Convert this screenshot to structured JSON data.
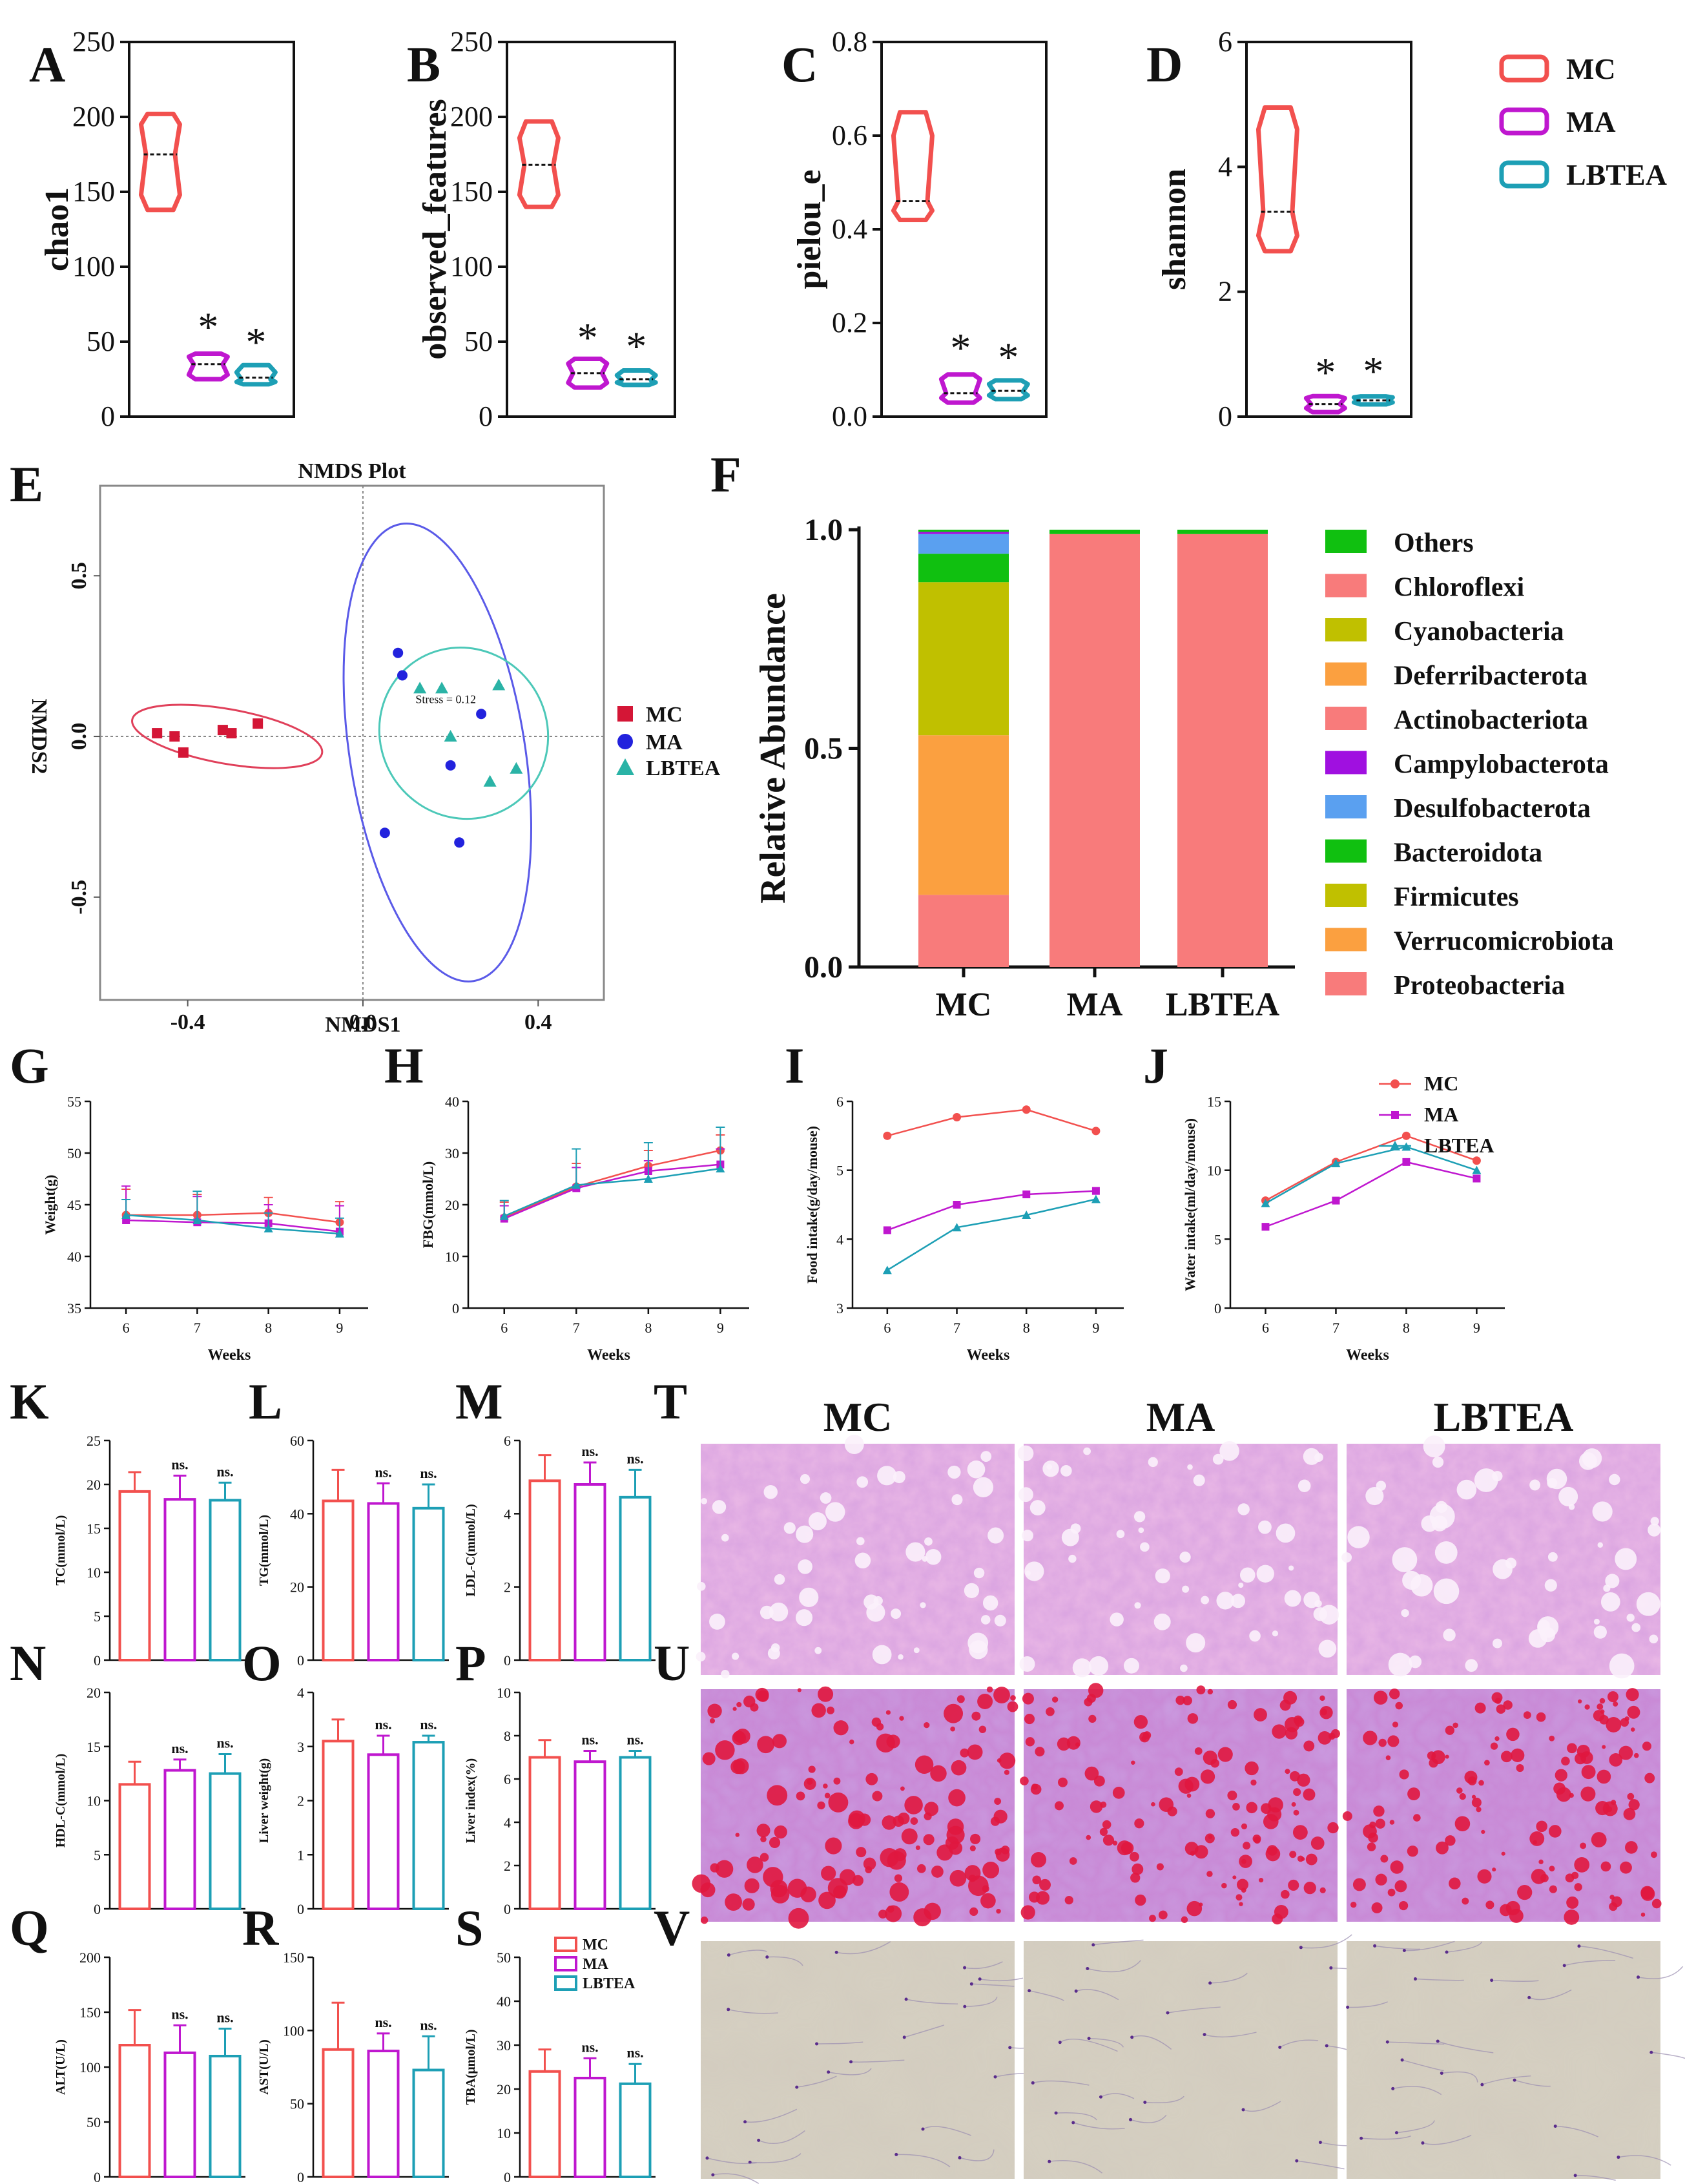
{
  "colors": {
    "MC": "#f2504e",
    "MA": "#bf17cf",
    "LBTEA": "#1d9fb5",
    "ma_dot": "#2222dd",
    "ellipse_MA": "#5a5ae8",
    "ellipse_LBTEA": "#4cc8b8",
    "ellipse_MC": "#e0405a",
    "mc_square": "#d41636",
    "lbtea_tri": "#2ab3a6"
  },
  "groups": [
    "MC",
    "MA",
    "LBTEA"
  ],
  "chart_data": [
    {
      "id": "A",
      "panel_label": "A",
      "type": "violin",
      "ylabel": "chao1",
      "ylim": [
        0,
        250
      ],
      "yticks": [
        "0",
        "50",
        "100",
        "150",
        "200",
        "250"
      ],
      "series": [
        {
          "name": "MC",
          "min": 138,
          "q1": 148,
          "median": 175,
          "q3": 195,
          "max": 202,
          "star": ""
        },
        {
          "name": "MA",
          "min": 25,
          "q1": 28,
          "median": 35,
          "q3": 40,
          "max": 42,
          "star": "*"
        },
        {
          "name": "LBTEA",
          "min": 24,
          "q1": 25,
          "median": 26,
          "q3": 29,
          "max": 32,
          "star": "*"
        }
      ]
    },
    {
      "id": "B",
      "panel_label": "B",
      "type": "violin",
      "ylabel": "observed_features",
      "ylim": [
        0,
        250
      ],
      "yticks": [
        "0",
        "50",
        "100",
        "150",
        "200",
        "250"
      ],
      "series": [
        {
          "name": "MC",
          "min": 140,
          "q1": 148,
          "median": 168,
          "q3": 186,
          "max": 197,
          "star": ""
        },
        {
          "name": "MA",
          "min": 23,
          "q1": 25,
          "median": 29,
          "q3": 33,
          "max": 35,
          "star": "*"
        },
        {
          "name": "LBTEA",
          "min": 23,
          "q1": 24,
          "median": 25,
          "q3": 27,
          "max": 29,
          "star": "*"
        }
      ]
    },
    {
      "id": "C",
      "panel_label": "C",
      "type": "violin",
      "ylabel": "pielou_e",
      "ylim": [
        0,
        0.8
      ],
      "yticks": [
        "0.0",
        "0.2",
        "0.4",
        "0.6",
        "0.8"
      ],
      "series": [
        {
          "name": "MC",
          "min": 0.42,
          "q1": 0.44,
          "median": 0.46,
          "q3": 0.6,
          "max": 0.65,
          "star": ""
        },
        {
          "name": "MA",
          "min": 0.03,
          "q1": 0.04,
          "median": 0.05,
          "q3": 0.08,
          "max": 0.09,
          "star": "*"
        },
        {
          "name": "LBTEA",
          "min": 0.045,
          "q1": 0.05,
          "median": 0.055,
          "q3": 0.065,
          "max": 0.07,
          "star": "*"
        }
      ]
    },
    {
      "id": "D",
      "panel_label": "D",
      "type": "violin",
      "ylabel": "shannon",
      "ylim": [
        0,
        6
      ],
      "yticks": [
        "0",
        "2",
        "4",
        "6"
      ],
      "series": [
        {
          "name": "MC",
          "min": 2.65,
          "q1": 2.9,
          "median": 3.28,
          "q3": 4.6,
          "max": 4.95,
          "star": ""
        },
        {
          "name": "MA",
          "min": 0.12,
          "q1": 0.16,
          "median": 0.2,
          "q3": 0.26,
          "max": 0.28,
          "star": "*"
        },
        {
          "name": "LBTEA",
          "min": 0.22,
          "q1": 0.24,
          "median": 0.26,
          "q3": 0.29,
          "max": 0.3,
          "star": "*"
        }
      ],
      "legend": [
        "MC",
        "MA",
        "LBTEA"
      ]
    },
    {
      "id": "E",
      "panel_label": "E",
      "type": "scatter",
      "title": "NMDS Plot",
      "xlabel": "NMDS1",
      "ylabel": "NMDS2",
      "annotation": "Stress = 0.12",
      "xlim": [
        -0.6,
        0.55
      ],
      "ylim": [
        -0.82,
        0.78
      ],
      "xticks": [
        "-0.4",
        "0.0",
        "0.4"
      ],
      "yticks": [
        "-0.5",
        "0.0",
        "0.5"
      ],
      "series": [
        {
          "name": "MC",
          "points": [
            [
              -0.47,
              0.01
            ],
            [
              -0.43,
              0.0
            ],
            [
              -0.41,
              -0.05
            ],
            [
              -0.32,
              0.02
            ],
            [
              -0.3,
              0.01
            ],
            [
              -0.24,
              0.04
            ]
          ],
          "ellipse": {
            "cx": -0.31,
            "cy": 0.0,
            "rx": 0.22,
            "ry": 0.085,
            "rot": 10
          }
        },
        {
          "name": "MA",
          "points": [
            [
              0.08,
              0.26
            ],
            [
              0.09,
              0.19
            ],
            [
              0.27,
              0.07
            ],
            [
              0.2,
              -0.09
            ],
            [
              0.05,
              -0.3
            ],
            [
              0.22,
              -0.33
            ]
          ],
          "ellipse": {
            "cx": 0.17,
            "cy": -0.05,
            "rx": 0.2,
            "ry": 0.72,
            "rot": -9
          }
        },
        {
          "name": "LBTEA",
          "points": [
            [
              0.13,
              0.15
            ],
            [
              0.18,
              0.15
            ],
            [
              0.31,
              0.16
            ],
            [
              0.2,
              0.0
            ],
            [
              0.29,
              -0.14
            ],
            [
              0.35,
              -0.1
            ]
          ],
          "ellipse": {
            "cx": 0.23,
            "cy": 0.01,
            "rx": 0.19,
            "ry": 0.27,
            "rot": -35
          }
        }
      ],
      "legend": [
        "MC",
        "MA",
        "LBTEA"
      ]
    },
    {
      "id": "F",
      "panel_label": "F",
      "type": "bar",
      "stacked": true,
      "ylabel": "Relative Abundance",
      "categories": [
        "MC",
        "MA",
        "LBTEA"
      ],
      "ylim": [
        0,
        1
      ],
      "yticks": [
        "0.0",
        "0.5",
        "1.0"
      ],
      "series": [
        {
          "name": "Proteobacteria",
          "color": "#f87b7b",
          "values": [
            0.165,
            0.99,
            0.99
          ]
        },
        {
          "name": "Verrucomicrobiota",
          "color": "#fba040",
          "values": [
            0.365,
            0,
            0
          ]
        },
        {
          "name": "Firmicutes",
          "color": "#c0c000",
          "values": [
            0.35,
            0,
            0
          ]
        },
        {
          "name": "Bacteroidota",
          "color": "#10c010",
          "values": [
            0.065,
            0,
            0
          ]
        },
        {
          "name": "Desulfobacterota",
          "color": "#5aa0f0",
          "values": [
            0.045,
            0,
            0
          ]
        },
        {
          "name": "Campylobacterota",
          "color": "#a010e0",
          "values": [
            0.005,
            0,
            0
          ]
        },
        {
          "name": "Actinobacteriota",
          "color": "#f87b7b",
          "values": [
            0,
            0,
            0
          ]
        },
        {
          "name": "Deferribacterota",
          "color": "#fba040",
          "values": [
            0,
            0,
            0
          ]
        },
        {
          "name": "Cyanobacteria",
          "color": "#c0c000",
          "values": [
            0,
            0,
            0
          ]
        },
        {
          "name": "Chloroflexi",
          "color": "#f87b7b",
          "values": [
            0,
            0,
            0
          ]
        },
        {
          "name": "Others",
          "color": "#10c010",
          "values": [
            0.005,
            0.01,
            0.01
          ]
        }
      ],
      "legend_order": [
        "Others",
        "Chloroflexi",
        "Cyanobacteria",
        "Deferribacterota",
        "Actinobacteriota",
        "Campylobacterota",
        "Desulfobacterota",
        "Bacteroidota",
        "Firmicutes",
        "Verrucomicrobiota",
        "Proteobacteria"
      ]
    },
    {
      "id": "G",
      "panel_label": "G",
      "type": "line",
      "xlabel": "Weeks",
      "ylabel": "Weight(g)",
      "x": [
        6,
        7,
        8,
        9
      ],
      "ylim": [
        35,
        55
      ],
      "yticks": [
        "35",
        "40",
        "45",
        "50",
        "55"
      ],
      "xticks": [
        "6",
        "7",
        "8",
        "9"
      ],
      "series": [
        {
          "name": "MC",
          "values": [
            44,
            44,
            44.2,
            43.3
          ],
          "err": [
            2.5,
            2,
            1.5,
            2
          ]
        },
        {
          "name": "MA",
          "values": [
            43.5,
            43.3,
            43.2,
            42.4
          ],
          "err": [
            3.3,
            2.5,
            1.8,
            2.5
          ]
        },
        {
          "name": "LBTEA",
          "values": [
            44,
            43.5,
            42.7,
            42.2
          ],
          "err": [
            1.5,
            2.8,
            1.5,
            1.5
          ]
        }
      ]
    },
    {
      "id": "H",
      "panel_label": "H",
      "type": "line",
      "xlabel": "Weeks",
      "ylabel": "FBG(mmol/L)",
      "x": [
        6,
        7,
        8,
        9
      ],
      "ylim": [
        0,
        40
      ],
      "yticks": [
        "0",
        "10",
        "20",
        "30",
        "40"
      ],
      "xticks": [
        "6",
        "7",
        "8",
        "9"
      ],
      "series": [
        {
          "name": "MC",
          "values": [
            17.5,
            23.5,
            27.5,
            30.5
          ],
          "err": [
            3,
            4.5,
            3,
            3
          ]
        },
        {
          "name": "MA",
          "values": [
            17.3,
            23.2,
            26.5,
            27.8
          ],
          "err": [
            2.5,
            4,
            2,
            3
          ]
        },
        {
          "name": "LBTEA",
          "values": [
            17.8,
            23.8,
            25,
            27
          ],
          "err": [
            3,
            7,
            7,
            8
          ]
        }
      ]
    },
    {
      "id": "I",
      "panel_label": "I",
      "type": "line",
      "xlabel": "Weeks",
      "ylabel": "Food intake(g/day/mouse)",
      "x": [
        6,
        7,
        8,
        9
      ],
      "ylim": [
        3,
        6
      ],
      "yticks": [
        "3",
        "4",
        "5",
        "6"
      ],
      "xticks": [
        "6",
        "7",
        "8",
        "9"
      ],
      "series": [
        {
          "name": "MC",
          "values": [
            5.5,
            5.77,
            5.88,
            5.57
          ]
        },
        {
          "name": "MA",
          "values": [
            4.13,
            4.5,
            4.65,
            4.7
          ]
        },
        {
          "name": "LBTEA",
          "values": [
            3.55,
            4.17,
            4.35,
            4.58
          ]
        }
      ]
    },
    {
      "id": "J",
      "panel_label": "J",
      "type": "line",
      "xlabel": "Weeks",
      "ylabel": "Water intake(ml/day/mouse)",
      "x": [
        6,
        7,
        8,
        9
      ],
      "ylim": [
        0,
        15
      ],
      "yticks": [
        "0",
        "5",
        "10",
        "15"
      ],
      "xticks": [
        "6",
        "7",
        "8",
        "9"
      ],
      "series": [
        {
          "name": "MC",
          "values": [
            7.8,
            10.6,
            12.5,
            10.7
          ]
        },
        {
          "name": "MA",
          "values": [
            5.9,
            7.8,
            10.6,
            9.4
          ]
        },
        {
          "name": "LBTEA",
          "values": [
            7.6,
            10.5,
            11.7,
            10
          ]
        }
      ],
      "legend": [
        "MC",
        "MA",
        "LBTEA"
      ]
    },
    {
      "id": "K",
      "panel_label": "K",
      "type": "bar",
      "ylabel": "TC(mmol/L)",
      "categories": [
        "MC",
        "MA",
        "LBTEA"
      ],
      "values": [
        19.2,
        18.3,
        18.2
      ],
      "err": [
        2.2,
        2.7,
        2.0
      ],
      "sig": [
        "",
        "ns.",
        "ns."
      ],
      "ylim": [
        0,
        25
      ],
      "yticks": [
        "0",
        "5",
        "10",
        "15",
        "20",
        "25"
      ]
    },
    {
      "id": "L",
      "panel_label": "L",
      "type": "bar",
      "ylabel": "TG(mmol/L)",
      "categories": [
        "MC",
        "MA",
        "LBTEA"
      ],
      "values": [
        43.5,
        42.8,
        41.5
      ],
      "err": [
        8.5,
        5.5,
        6.5
      ],
      "sig": [
        "",
        "ns.",
        "ns."
      ],
      "ylim": [
        0,
        60
      ],
      "yticks": [
        "0",
        "20",
        "40",
        "60"
      ]
    },
    {
      "id": "M",
      "panel_label": "M",
      "type": "bar",
      "ylabel": "LDL-C(mmol/L)",
      "categories": [
        "MC",
        "MA",
        "LBTEA"
      ],
      "values": [
        4.9,
        4.8,
        4.45
      ],
      "err": [
        0.7,
        0.6,
        0.75
      ],
      "sig": [
        "",
        "ns.",
        "ns."
      ],
      "ylim": [
        0,
        6
      ],
      "yticks": [
        "0",
        "2",
        "4",
        "6"
      ]
    },
    {
      "id": "N",
      "panel_label": "N",
      "type": "bar",
      "ylabel": "HDL-C(mmol/L)",
      "categories": [
        "MC",
        "MA",
        "LBTEA"
      ],
      "values": [
        11.5,
        12.8,
        12.5
      ],
      "err": [
        2.1,
        1.0,
        1.8
      ],
      "sig": [
        "",
        "ns.",
        "ns."
      ],
      "ylim": [
        0,
        20
      ],
      "yticks": [
        "0",
        "5",
        "10",
        "15",
        "20"
      ]
    },
    {
      "id": "O",
      "panel_label": "O",
      "type": "bar",
      "ylabel": "Liver weight(g)",
      "categories": [
        "MC",
        "MA",
        "LBTEA"
      ],
      "values": [
        3.1,
        2.85,
        3.08
      ],
      "err": [
        0.4,
        0.35,
        0.12
      ],
      "sig": [
        "",
        "ns.",
        "ns."
      ],
      "ylim": [
        0,
        4
      ],
      "yticks": [
        "0",
        "1",
        "2",
        "3",
        "4"
      ]
    },
    {
      "id": "P",
      "panel_label": "P",
      "type": "bar",
      "ylabel": "Liver index(%)",
      "categories": [
        "MC",
        "MA",
        "LBTEA"
      ],
      "values": [
        7.0,
        6.8,
        7.0
      ],
      "err": [
        0.8,
        0.5,
        0.3
      ],
      "sig": [
        "",
        "ns.",
        "ns."
      ],
      "ylim": [
        0,
        10
      ],
      "yticks": [
        "0",
        "2",
        "4",
        "6",
        "8",
        "10"
      ]
    },
    {
      "id": "Q",
      "panel_label": "Q",
      "type": "bar",
      "ylabel": "ALT(U/L)",
      "categories": [
        "MC",
        "MA",
        "LBTEA"
      ],
      "values": [
        120,
        113,
        110
      ],
      "err": [
        32,
        25,
        25
      ],
      "sig": [
        "",
        "ns.",
        "ns."
      ],
      "ylim": [
        0,
        200
      ],
      "yticks": [
        "0",
        "50",
        "100",
        "150",
        "200"
      ]
    },
    {
      "id": "R",
      "panel_label": "R",
      "type": "bar",
      "ylabel": "AST(U/L)",
      "categories": [
        "MC",
        "MA",
        "LBTEA"
      ],
      "values": [
        87,
        86,
        73
      ],
      "err": [
        32,
        12,
        23
      ],
      "sig": [
        "",
        "ns.",
        "ns."
      ],
      "ylim": [
        0,
        150
      ],
      "yticks": [
        "0",
        "50",
        "100",
        "150"
      ]
    },
    {
      "id": "S",
      "panel_label": "S",
      "type": "bar",
      "ylabel": "TBA(μmol/L)",
      "categories": [
        "MC",
        "MA",
        "LBTEA"
      ],
      "values": [
        24,
        22.5,
        21.2
      ],
      "err": [
        5,
        4.5,
        4.5
      ],
      "sig": [
        "",
        "ns.",
        "ns."
      ],
      "ylim": [
        0,
        50
      ],
      "yticks": [
        "0",
        "10",
        "20",
        "30",
        "40",
        "50"
      ],
      "legend": [
        "MC",
        "MA",
        "LBTEA"
      ]
    }
  ],
  "histology": {
    "T": {
      "panel_label": "T",
      "columns": [
        "MC",
        "MA",
        "LBTEA"
      ]
    },
    "U": {
      "panel_label": "U"
    },
    "V": {
      "panel_label": "V"
    }
  }
}
